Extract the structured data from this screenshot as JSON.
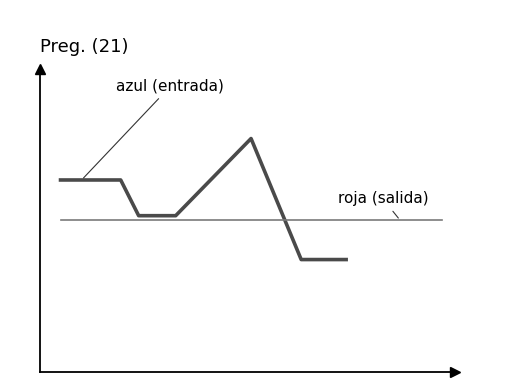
{
  "chart_data": {
    "type": "line",
    "title": "Preg. (21)",
    "series": [
      {
        "name": "azul (entrada)",
        "color": "#4a4a4a",
        "x": [
          0.58,
          2.32,
          2.84,
          3.91,
          6.09,
          7.54,
          8.84
        ],
        "values": [
          6.33,
          6.33,
          5.15,
          5.15,
          7.7,
          3.7,
          3.7
        ]
      },
      {
        "name": "roja (salida)",
        "color": "#7a7a7a",
        "x": [
          0.58,
          11.6
        ],
        "values": [
          5.0,
          5.0
        ]
      }
    ],
    "xlim": [
      0,
      12
    ],
    "ylim": [
      0,
      10
    ],
    "tick_labels": false,
    "grid": false
  }
}
